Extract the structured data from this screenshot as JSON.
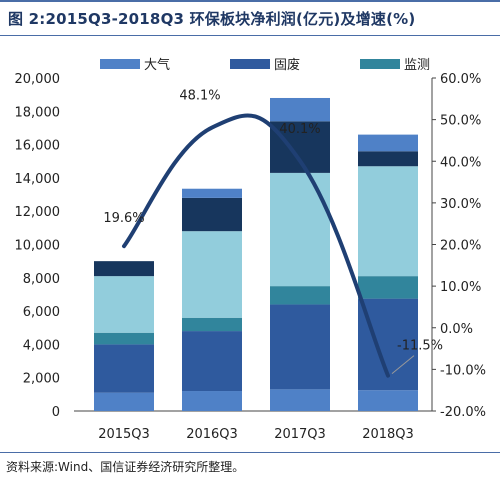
{
  "title": "图 2:2015Q3-2018Q3 环保板块净利润(亿元)及增速(%)",
  "source": "资料来源:Wind、国信证券经济研究所整理。",
  "chart_data": {
    "type": "bar",
    "categories": [
      "2015Q3",
      "2016Q3",
      "2017Q3",
      "2018Q3"
    ],
    "stacked": true,
    "series": [
      {
        "name": "大气",
        "color": "#4f81c7",
        "values": [
          1100,
          1200,
          1300,
          1250
        ]
      },
      {
        "name": "固废",
        "color": "#2f5a9e",
        "values": [
          2900,
          3600,
          5100,
          5500
        ]
      },
      {
        "name": "监测",
        "color": "#31859c",
        "values": [
          700,
          800,
          1100,
          1350
        ]
      },
      {
        "name": "",
        "color": "#92cddc",
        "values": [
          3400,
          5200,
          6800,
          6600
        ]
      },
      {
        "name": "",
        "color": "#17365d",
        "values": [
          900,
          2000,
          3100,
          900
        ]
      },
      {
        "name": "",
        "color": "#4f81c7",
        "values": [
          0,
          550,
          1400,
          1000
        ]
      }
    ],
    "line": {
      "name": "",
      "values": [
        19.6,
        48.1,
        40.1,
        -11.5
      ],
      "labels": [
        "19.6%",
        "48.1%",
        "40.1%",
        "-11.5%"
      ],
      "color": "#1f3f73"
    },
    "y_left": {
      "min": 0,
      "max": 20000,
      "step": 2000,
      "ticks": [
        "0",
        "2,000",
        "4,000",
        "6,000",
        "8,000",
        "10,000",
        "12,000",
        "14,000",
        "16,000",
        "18,000",
        "20,000"
      ]
    },
    "y_right": {
      "min": -20,
      "max": 60,
      "step": 10,
      "ticks": [
        "-20.0%",
        "-10.0%",
        "0.0%",
        "10.0%",
        "20.0%",
        "30.0%",
        "40.0%",
        "50.0%",
        "60.0%"
      ]
    },
    "legend": [
      "大气",
      "固废",
      "监测"
    ],
    "legend_position": "top",
    "grid": false
  }
}
